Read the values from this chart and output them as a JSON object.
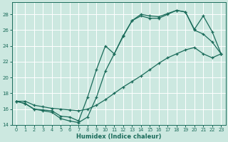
{
  "xlabel": "Humidex (Indice chaleur)",
  "bg_color": "#cce8e0",
  "grid_color": "#b0d4cc",
  "line_color": "#1a6b5a",
  "ylim": [
    14,
    29
  ],
  "xlim": [
    -0.5,
    23.5
  ],
  "yticks": [
    14,
    16,
    18,
    20,
    22,
    24,
    26,
    28
  ],
  "xticks": [
    0,
    1,
    2,
    3,
    4,
    5,
    6,
    7,
    8,
    9,
    10,
    11,
    12,
    13,
    14,
    15,
    16,
    17,
    18,
    19,
    20,
    21,
    22,
    23
  ],
  "line1_x": [
    0,
    1,
    2,
    3,
    4,
    5,
    6,
    7,
    8,
    9,
    10,
    11,
    12,
    13,
    14,
    15,
    16,
    17,
    18,
    19,
    20,
    21,
    22,
    23
  ],
  "line1_y": [
    17,
    16.7,
    16,
    15.9,
    15.8,
    15.1,
    15.0,
    14.5,
    17.5,
    21.0,
    24.0,
    23.0,
    25.3,
    27.2,
    27.8,
    27.5,
    27.5,
    28.0,
    28.5,
    28.3,
    26.0,
    25.5,
    24.5,
    23.0
  ],
  "line2_x": [
    0,
    1,
    2,
    3,
    4,
    5,
    6,
    7,
    8,
    9,
    10,
    11,
    12,
    13,
    14,
    15,
    16,
    17,
    18,
    19,
    20,
    21,
    22,
    23
  ],
  "line2_y": [
    17,
    16.7,
    16,
    15.8,
    15.6,
    14.8,
    14.5,
    14.3,
    15.0,
    17.5,
    20.8,
    23.0,
    25.2,
    27.2,
    28.0,
    27.8,
    27.7,
    28.1,
    28.5,
    28.3,
    26.1,
    27.8,
    25.8,
    23.0
  ],
  "line3_x": [
    0,
    1,
    2,
    3,
    4,
    5,
    6,
    7,
    8,
    9,
    10,
    11,
    12,
    13,
    14,
    15,
    16,
    17,
    18,
    19,
    20,
    21,
    22,
    23
  ],
  "line3_y": [
    17,
    17,
    16.5,
    16.3,
    16.1,
    16.0,
    15.9,
    15.8,
    16.0,
    16.5,
    17.2,
    18.0,
    18.8,
    19.5,
    20.2,
    21.0,
    21.8,
    22.5,
    23.0,
    23.5,
    23.8,
    23.0,
    22.5,
    23.0
  ]
}
